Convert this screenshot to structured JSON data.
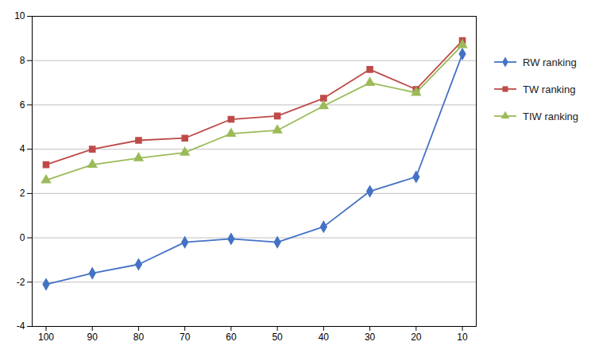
{
  "chart_data": {
    "type": "line",
    "x": [
      100,
      90,
      80,
      70,
      60,
      50,
      40,
      30,
      20,
      10
    ],
    "series": [
      {
        "name": "RW ranking",
        "color": "#4472C4",
        "marker": "diamond",
        "values": [
          -2.1,
          -1.6,
          -1.2,
          -0.2,
          -0.05,
          -0.2,
          0.5,
          2.1,
          2.75,
          8.3
        ]
      },
      {
        "name": "TW ranking",
        "color": "#BE4B48",
        "marker": "square",
        "values": [
          3.3,
          4.0,
          4.4,
          4.5,
          5.35,
          5.5,
          6.3,
          7.6,
          6.7,
          8.9
        ]
      },
      {
        "name": "TIW ranking",
        "color": "#9BBB59",
        "marker": "triangle",
        "values": [
          2.6,
          3.3,
          3.6,
          3.85,
          4.7,
          4.85,
          5.95,
          7.0,
          6.55,
          8.7
        ]
      }
    ],
    "xlim": [
      103,
      7
    ],
    "xticks": [
      100,
      90,
      80,
      70,
      60,
      50,
      40,
      30,
      20,
      10
    ],
    "ylim": [
      -4,
      10
    ],
    "yticks": [
      -4,
      -2,
      0,
      2,
      4,
      6,
      8,
      10
    ],
    "grid": "y",
    "legend": "right"
  }
}
